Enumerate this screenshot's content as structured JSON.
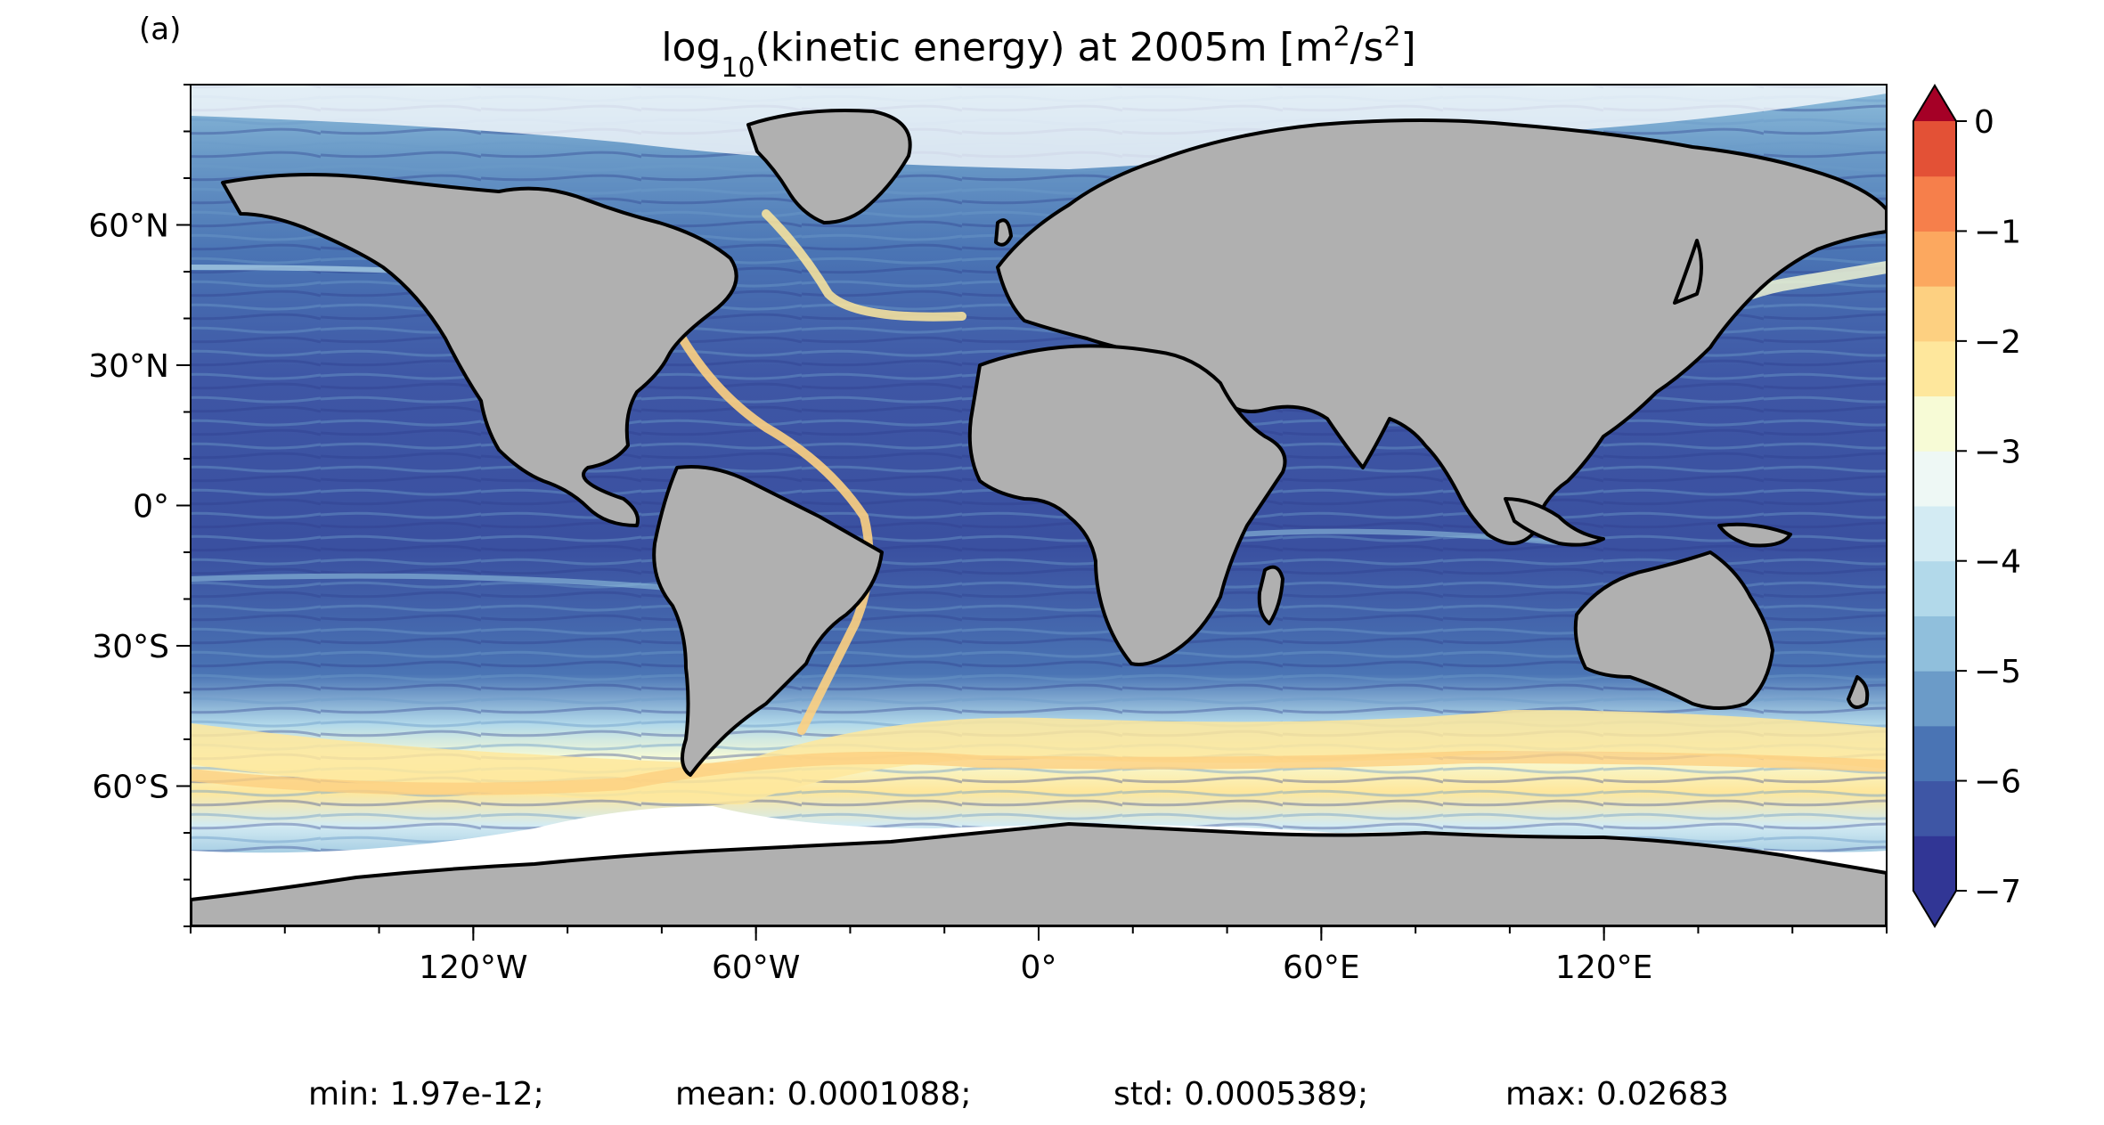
{
  "figure": {
    "panel_label": "(a)",
    "title": {
      "prefix": "log",
      "sub": "10",
      "mid": "(kinetic energy) at 2005m [m",
      "sup1": "2",
      "mid2": "/s",
      "sup2": "2",
      "suffix": "]"
    }
  },
  "chart_data": {
    "type": "heatmap",
    "description_kind": "global ocean map, equirectangular projection",
    "x_axis": {
      "range": [
        -180,
        180
      ],
      "ticks": [
        {
          "value": -120,
          "label": "120°W"
        },
        {
          "value": -60,
          "label": "60°W"
        },
        {
          "value": 0,
          "label": "0°"
        },
        {
          "value": 60,
          "label": "60°E"
        },
        {
          "value": 120,
          "label": "120°E"
        }
      ],
      "minor_step": 20
    },
    "y_axis": {
      "range": [
        -90,
        90
      ],
      "ticks": [
        {
          "value": 60,
          "label": "60°N"
        },
        {
          "value": 30,
          "label": "30°N"
        },
        {
          "value": 0,
          "label": "0°"
        },
        {
          "value": -30,
          "label": "30°S"
        },
        {
          "value": -60,
          "label": "60°S"
        }
      ],
      "minor_step": 10
    },
    "colorbar": {
      "range": [
        -7,
        0
      ],
      "ticks": [
        {
          "value": 0,
          "label": "0"
        },
        {
          "value": -1,
          "label": "−1"
        },
        {
          "value": -2,
          "label": "−2"
        },
        {
          "value": -3,
          "label": "−3"
        },
        {
          "value": -4,
          "label": "−4"
        },
        {
          "value": -5,
          "label": "−5"
        },
        {
          "value": -6,
          "label": "−6"
        },
        {
          "value": -7,
          "label": "−7"
        }
      ],
      "extend": "both",
      "levels_step": 0.5,
      "colors": [
        "#313695",
        "#3e56a5",
        "#4a74b4",
        "#6b9bc8",
        "#90bfdc",
        "#b2d9ea",
        "#d3ebf3",
        "#eef8f5",
        "#f7fbd6",
        "#fee79c",
        "#fdd081",
        "#fca85f",
        "#f67f4b",
        "#e35136",
        "#ce2d28",
        "#a50026"
      ],
      "under_color": "#313695",
      "over_color": "#a50026"
    },
    "stats": {
      "min": "min: 1.97e-12;",
      "mean": "mean: 0.0001088;",
      "std": "std: 0.0005389;",
      "max": "max: 0.02683"
    },
    "land_color": "#b0b0b0"
  }
}
